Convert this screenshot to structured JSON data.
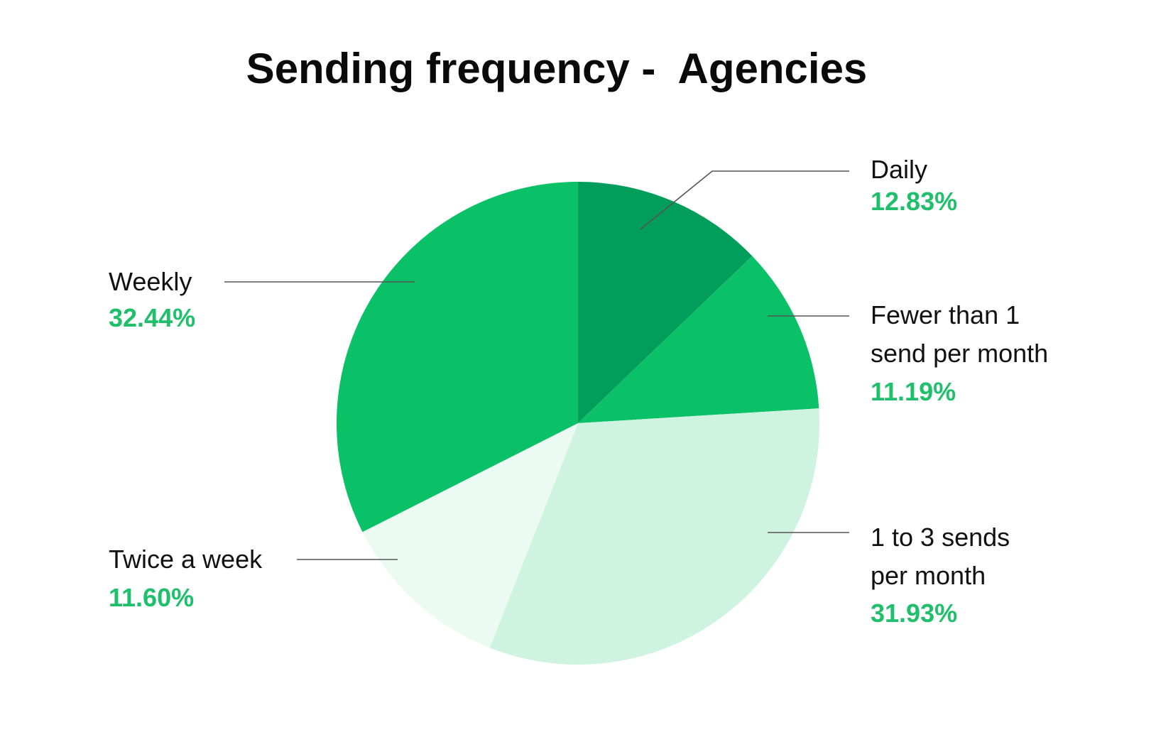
{
  "title": "Sending frequency -  Agencies",
  "colors": {
    "dark_green": "#009e5a",
    "green": "#0bc167",
    "light_mint": "#cef3e1",
    "pale_mint": "#ebfaf2",
    "percent_text": "#1fbf6c",
    "leader_line": "#555555"
  },
  "chart_data": {
    "type": "pie",
    "title": "Sending frequency -  Agencies",
    "start_angle": "12 o'clock, clockwise",
    "legend_position": "callout labels",
    "slices": [
      {
        "label": "Daily",
        "value": 12.83,
        "display": "12.83%",
        "color": "#009e5a"
      },
      {
        "label": "Fewer than 1 send per month",
        "value": 11.19,
        "display": "11.19%",
        "color": "#0bc167"
      },
      {
        "label": "1 to 3 sends per month",
        "value": 31.93,
        "display": "31.93%",
        "color": "#cef3e1"
      },
      {
        "label": "Twice a week",
        "value": 11.6,
        "display": "11.60%",
        "color": "#ebfaf2"
      },
      {
        "label": "Weekly",
        "value": 32.44,
        "display": "32.44%",
        "color": "#0bc167"
      }
    ]
  },
  "labels": {
    "daily": {
      "line1": "Daily",
      "pct": "12.83%"
    },
    "fewer": {
      "line1": "Fewer than 1",
      "line2": "send per month",
      "pct": "11.19%"
    },
    "one_to_three": {
      "line1": "1 to 3 sends",
      "line2": "per month",
      "pct": "31.93%"
    },
    "twice": {
      "line1": "Twice a week",
      "pct": "11.60%"
    },
    "weekly": {
      "line1": "Weekly",
      "pct": "32.44%"
    }
  }
}
